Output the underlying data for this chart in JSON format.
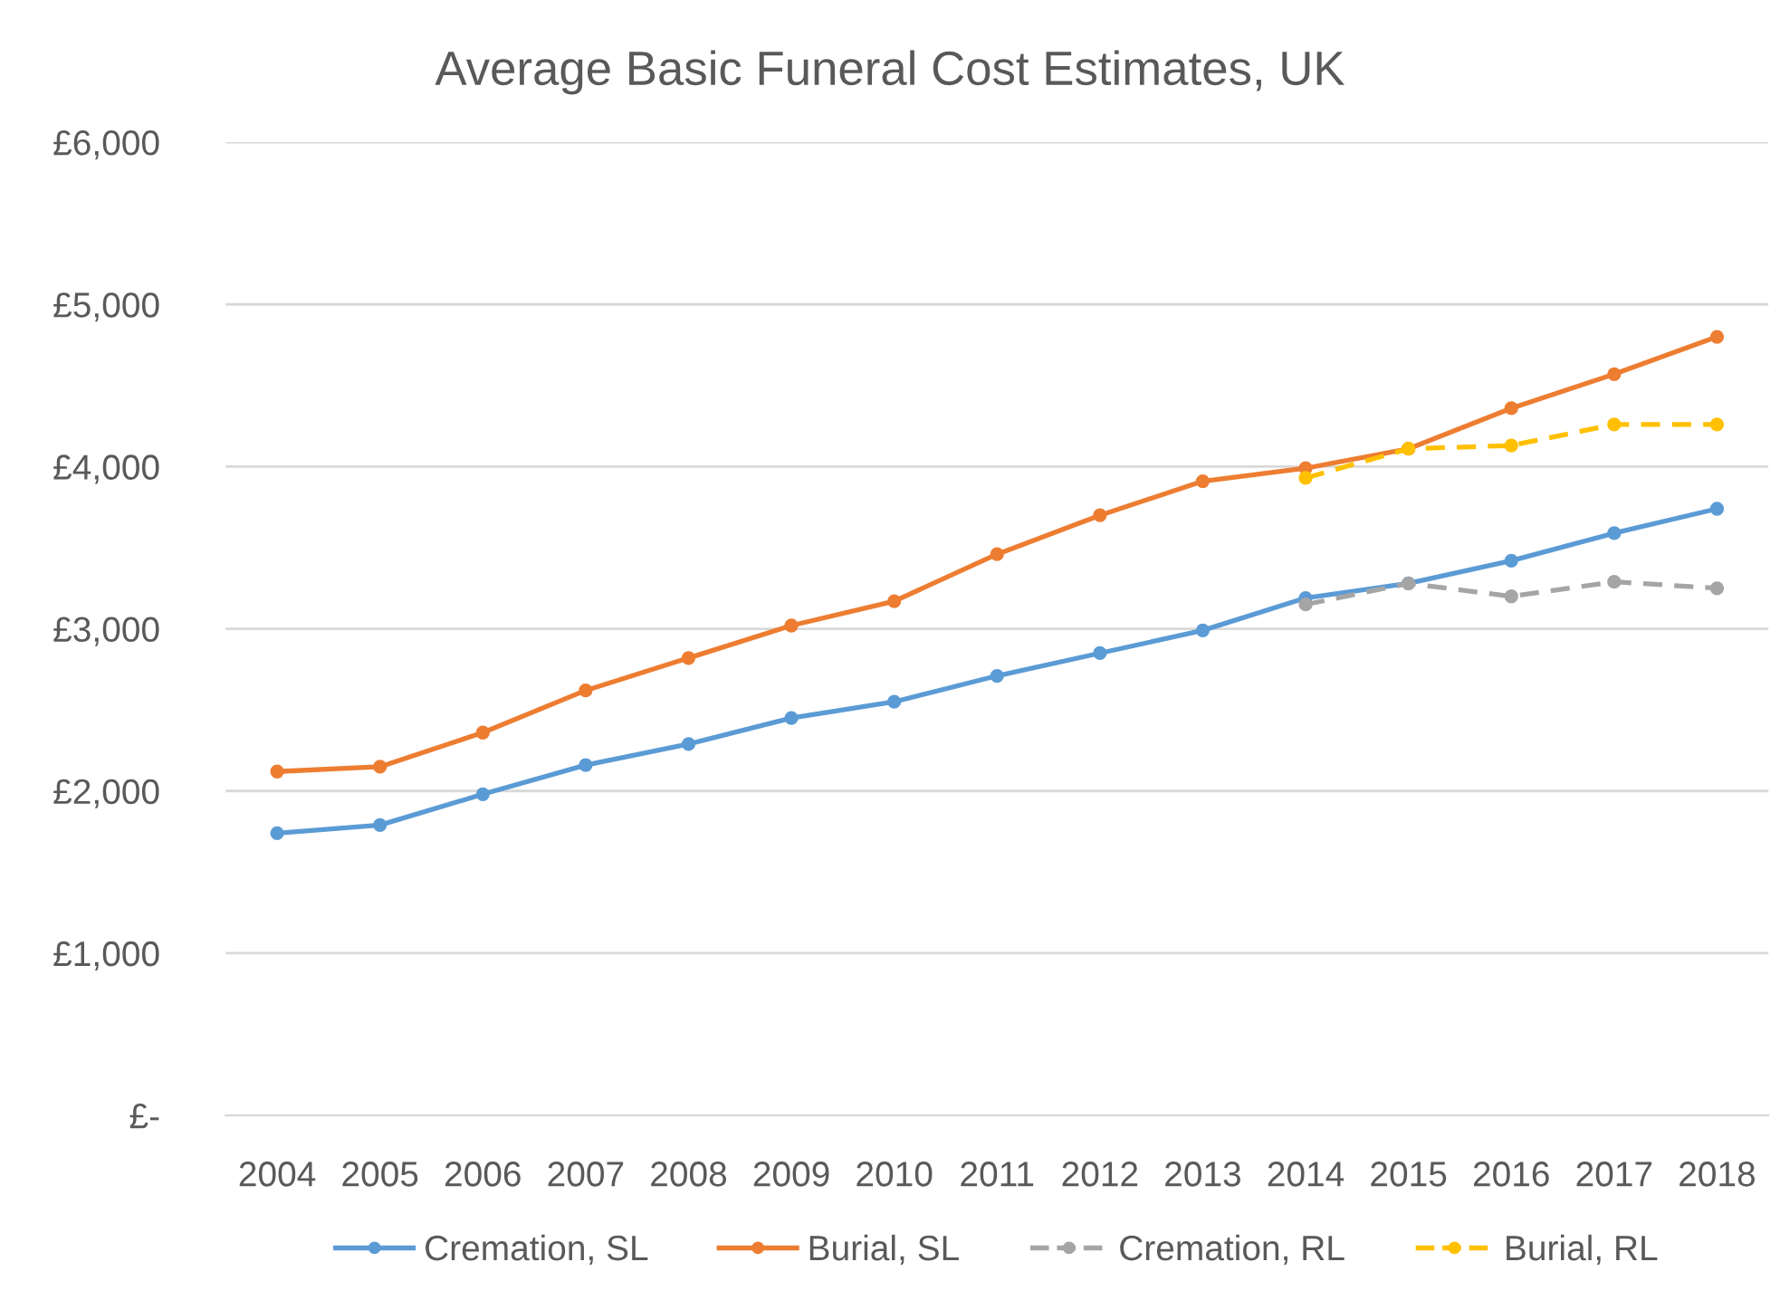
{
  "chart_data": {
    "type": "line",
    "title": "Average Basic Funeral Cost Estimates, UK",
    "categories": [
      "2004",
      "2005",
      "2006",
      "2007",
      "2008",
      "2009",
      "2010",
      "2011",
      "2012",
      "2013",
      "2014",
      "2015",
      "2016",
      "2017",
      "2018"
    ],
    "series": [
      {
        "name": "Cremation, SL",
        "color": "#5b9bd5",
        "line_style": "solid",
        "values": [
          1740,
          1790,
          1980,
          2160,
          2290,
          2450,
          2550,
          2710,
          2850,
          2990,
          3190,
          3280,
          3420,
          3590,
          3740
        ]
      },
      {
        "name": "Burial, SL",
        "color": "#ed7d31",
        "line_style": "solid",
        "values": [
          2120,
          2150,
          2360,
          2620,
          2820,
          3020,
          3170,
          3460,
          3700,
          3910,
          3990,
          4110,
          4360,
          4570,
          4800
        ]
      },
      {
        "name": "Cremation, RL",
        "color": "#a5a5a5",
        "line_style": "dashed",
        "values": [
          null,
          null,
          null,
          null,
          null,
          null,
          null,
          null,
          null,
          null,
          3150,
          3280,
          3200,
          3290,
          3250
        ]
      },
      {
        "name": "Burial, RL",
        "color": "#ffc000",
        "line_style": "dashed",
        "values": [
          null,
          null,
          null,
          null,
          null,
          null,
          null,
          null,
          null,
          null,
          3930,
          4110,
          4130,
          4260,
          4260
        ]
      }
    ],
    "ylim": [
      0,
      6000
    ],
    "yticks": [
      {
        "value": 0,
        "label": "£-"
      },
      {
        "value": 1000,
        "label": "£1,000"
      },
      {
        "value": 2000,
        "label": "£2,000"
      },
      {
        "value": 3000,
        "label": "£3,000"
      },
      {
        "value": 4000,
        "label": "£4,000"
      },
      {
        "value": 5000,
        "label": "£5,000"
      },
      {
        "value": 6000,
        "label": "£6,000"
      }
    ],
    "grid": "y",
    "legend": "bottom",
    "marker": "circle"
  }
}
